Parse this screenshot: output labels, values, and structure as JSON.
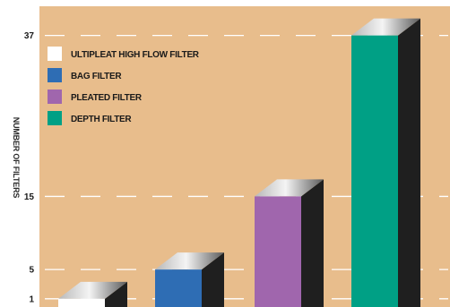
{
  "chart_data": {
    "type": "bar",
    "title": "",
    "ylabel": "NUMBER OF FILTERS",
    "xlabel": "",
    "y_ticks": [
      1,
      5,
      15,
      37
    ],
    "grid": "dashed horizontal at tick values",
    "legend_position": "top-left",
    "series": [
      {
        "name": "ULTIPLEAT HIGH FLOW FILTER",
        "value": 1,
        "color": "#ffffff"
      },
      {
        "name": "BAG FILTER",
        "value": 5,
        "color": "#2e6db4"
      },
      {
        "name": "PLEATED FILTER",
        "value": 15,
        "color": "#a066ad"
      },
      {
        "name": "DEPTH FILTER",
        "value": 37,
        "color": "#00a085"
      }
    ]
  },
  "colors": {
    "background": "#e8bd8c",
    "frame": "#ffffff",
    "grid": "#ffffff",
    "bar_side": "#1f1f1f"
  }
}
